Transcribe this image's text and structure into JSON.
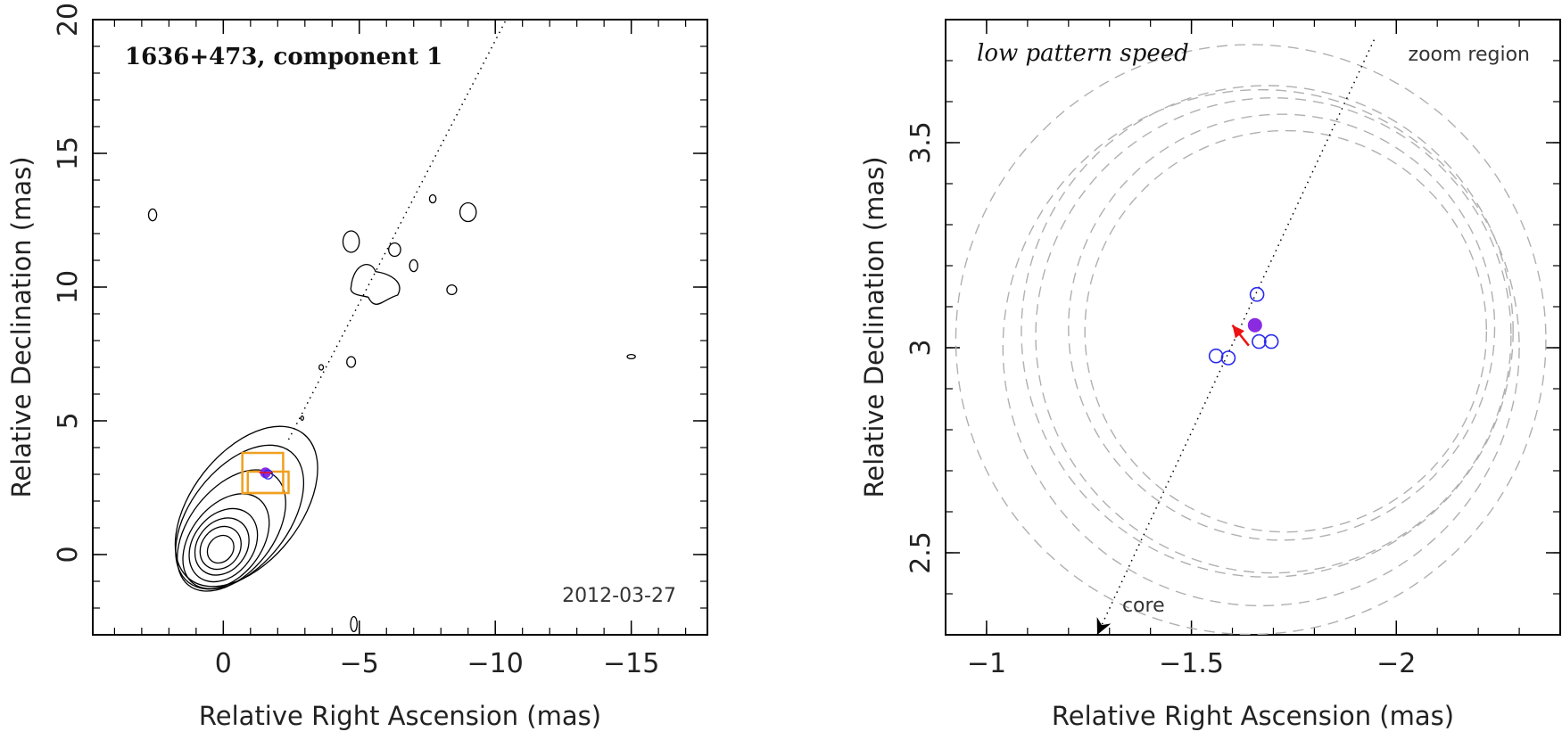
{
  "chart_data": [
    {
      "type": "contour",
      "title": "1636+473, component 1",
      "annotation": "2012-03-27",
      "xlabel": "Relative Right Ascension (mas)",
      "ylabel": "Relative Declination (mas)",
      "xlim": [
        4.8,
        -17.8
      ],
      "ylim": [
        -3,
        20
      ],
      "x_reversed": true,
      "xticks": [
        {
          "v": 0,
          "t": "0"
        },
        {
          "v": -5,
          "t": "−5"
        },
        {
          "v": -10,
          "t": "−10"
        },
        {
          "v": -15,
          "t": "−15"
        }
      ],
      "yticks": [
        {
          "v": 0,
          "t": "0"
        },
        {
          "v": 5,
          "t": "5"
        },
        {
          "v": 10,
          "t": "10"
        },
        {
          "v": 15,
          "t": "15"
        },
        {
          "v": 20,
          "t": "20"
        }
      ],
      "jet_axis": {
        "from": [
          -2.4,
          4.3
        ],
        "to": [
          -10.4,
          20
        ]
      },
      "component": {
        "x": -1.55,
        "y": 3.06
      },
      "boxes": [
        {
          "x0": -0.7,
          "x1": -2.2,
          "y0": 2.3,
          "y1": 3.8
        },
        {
          "x0": -0.9,
          "x1": -2.4,
          "y0": 2.3,
          "y1": 3.1
        }
      ],
      "core_contours": [
        {
          "cx": 0.1,
          "cy": 0.2,
          "rx": 0.45,
          "ry": 0.55
        },
        {
          "cx": 0.1,
          "cy": 0.25,
          "rx": 0.7,
          "ry": 0.85
        },
        {
          "cx": 0.05,
          "cy": 0.3,
          "rx": 0.9,
          "ry": 1.15
        },
        {
          "cx": 0.0,
          "cy": 0.35,
          "rx": 1.1,
          "ry": 1.5
        },
        {
          "cx": -0.1,
          "cy": 0.5,
          "rx": 1.3,
          "ry": 2.0
        },
        {
          "cx": -0.3,
          "cy": 0.9,
          "rx": 1.55,
          "ry": 2.6
        },
        {
          "cx": -0.6,
          "cy": 1.4,
          "rx": 1.8,
          "ry": 3.1
        },
        {
          "cx": -0.85,
          "cy": 1.8,
          "rx": 2.0,
          "ry": 3.45
        }
      ],
      "blobs": [
        {
          "cx": -4.7,
          "cy": 11.7,
          "rx": 0.3,
          "ry": 0.4
        },
        {
          "cx": -6.3,
          "cy": 11.4,
          "rx": 0.22,
          "ry": 0.25
        },
        {
          "cx": -7.0,
          "cy": 10.8,
          "rx": 0.15,
          "ry": 0.22
        },
        {
          "cx": -7.7,
          "cy": 13.3,
          "rx": 0.12,
          "ry": 0.15
        },
        {
          "cx": -8.4,
          "cy": 9.9,
          "rx": 0.18,
          "ry": 0.18
        },
        {
          "cx": -9.0,
          "cy": 12.8,
          "rx": 0.3,
          "ry": 0.35
        },
        {
          "cx": -4.7,
          "cy": 7.2,
          "rx": 0.16,
          "ry": 0.2
        },
        {
          "cx": -3.6,
          "cy": 7.0,
          "rx": 0.08,
          "ry": 0.1
        },
        {
          "cx": -2.9,
          "cy": 5.1,
          "rx": 0.05,
          "ry": 0.08
        },
        {
          "cx": -4.8,
          "cy": -2.6,
          "rx": 0.12,
          "ry": 0.28
        },
        {
          "cx": 2.6,
          "cy": 12.7,
          "rx": 0.15,
          "ry": 0.22
        },
        {
          "cx": -15.0,
          "cy": 7.4,
          "rx": 0.15,
          "ry": 0.08
        }
      ],
      "cloud": {
        "cx": -5.6,
        "cy": 10.1,
        "rx": 0.9,
        "ry": 0.8
      }
    },
    {
      "type": "scatter",
      "title": "low pattern speed",
      "annotation": "zoom region",
      "xlabel": "Relative Right Ascension (mas)",
      "ylabel": "Relative Declination (mas)",
      "xlim": [
        -0.9,
        -2.4
      ],
      "ylim": [
        2.3,
        3.8
      ],
      "x_reversed": true,
      "xticks": [
        {
          "v": -1,
          "t": "−1"
        },
        {
          "v": -1.5,
          "t": "−1.5"
        },
        {
          "v": -2,
          "t": "−2"
        }
      ],
      "yticks": [
        {
          "v": 2.5,
          "t": "2.5"
        },
        {
          "v": 3,
          "t": "3"
        },
        {
          "v": 3.5,
          "t": "3.5"
        }
      ],
      "jet_axis": {
        "from": [
          -1.27,
          2.3
        ],
        "to": [
          -1.95,
          3.76
        ]
      },
      "core_arrow_label": "core",
      "observed_points": [
        {
          "x": -1.66,
          "y": 3.13
        },
        {
          "x": -1.56,
          "y": 2.98
        },
        {
          "x": -1.59,
          "y": 2.975
        },
        {
          "x": -1.665,
          "y": 3.015
        },
        {
          "x": -1.695,
          "y": 3.015
        }
      ],
      "model_point": {
        "x": -1.655,
        "y": 3.055
      },
      "arrow": {
        "from": [
          -1.64,
          3.005
        ],
        "to": [
          -1.6,
          3.055
        ]
      },
      "circles": [
        {
          "cx": -1.645,
          "cy": 3.02,
          "r": 0.72
        },
        {
          "cx": -1.67,
          "cy": 3.0,
          "r": 0.63
        },
        {
          "cx": -1.685,
          "cy": 3.04,
          "r": 0.6
        },
        {
          "cx": -1.7,
          "cy": 3.03,
          "r": 0.58
        },
        {
          "cx": -1.72,
          "cy": 3.05,
          "r": 0.52
        },
        {
          "cx": -1.73,
          "cy": 3.04,
          "r": 0.49
        }
      ]
    }
  ],
  "colors": {
    "axis": "#000000",
    "contour": "#000000",
    "box": "#f0a020",
    "open_marker": "#2a2aee",
    "filled_marker": "#8a2be2",
    "arrow": "#ee1111",
    "circles": "#b0b0b0"
  }
}
